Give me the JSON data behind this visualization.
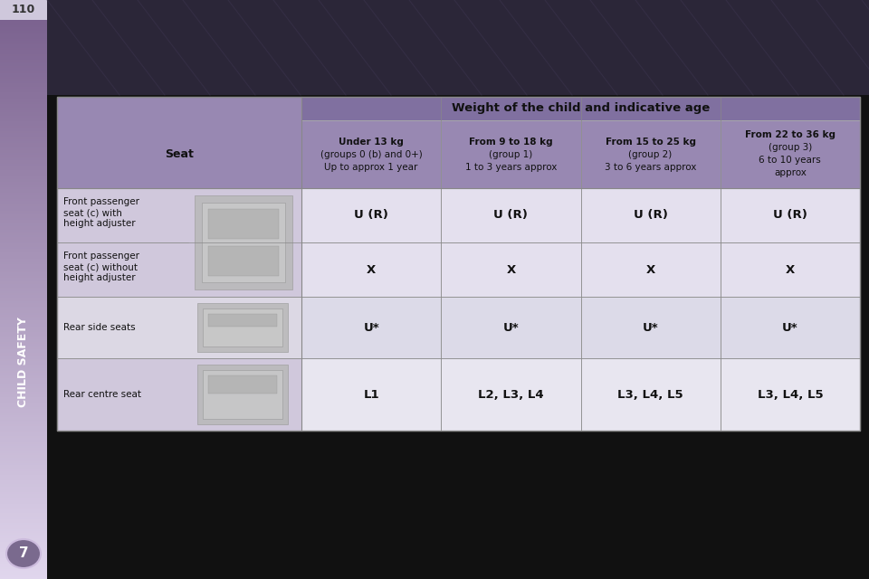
{
  "page_number": "110",
  "chapter_label": "CHILD SAFETY",
  "chapter_number": "7",
  "table_header_main": "Weight of the child and indicative age",
  "col_header_seat": "Seat",
  "col_headers": [
    [
      "Under 13 kg",
      "(groups 0 (b) and 0+)",
      "Up to approx 1 year"
    ],
    [
      "From 9 to 18 kg",
      "(group 1)",
      "1 to 3 years approx"
    ],
    [
      "From 15 to 25 kg",
      "(group 2)",
      "3 to 6 years approx"
    ],
    [
      "From 22 to 36 kg",
      "(group 3)",
      "6 to 10 years",
      "approx"
    ]
  ],
  "row_label_lines": [
    [
      "Front passenger",
      "seat (c) with",
      "height adjuster"
    ],
    [
      "Front passenger",
      "seat (c) without",
      "height adjuster"
    ],
    [
      "Rear side seats"
    ],
    [
      "Rear centre seat"
    ]
  ],
  "cell_values": [
    [
      "U (R)",
      "U (R)",
      "U (R)",
      "U (R)"
    ],
    [
      "X",
      "X",
      "X",
      "X"
    ],
    [
      "U*",
      "U*",
      "U*",
      "U*"
    ],
    [
      "L1",
      "L2, L3, L4",
      "L3, L4, L5",
      "L3, L4, L5"
    ]
  ],
  "bold_in_labels": [
    "(c)",
    "(c)",
    "",
    ""
  ],
  "bg_dark": "#111111",
  "sidebar_top": "#7a6090",
  "sidebar_bottom": "#e0d8ec",
  "page_num_bg": "#cfc8dc",
  "chapter_num_bg": "#7a6a8e",
  "decorative_top_bg": "#2b2638",
  "table_outer_bg": "#c8c0d8",
  "table_header_bg": "#8070a0",
  "table_subheader_bg": "#9888b2",
  "row0_seat_bg": "#d0c8dc",
  "row1_seat_bg": "#d0c8dc",
  "row2_seat_bg": "#dcd8e4",
  "row3_seat_bg": "#d0c8dc",
  "row0_cell_bg": "#e4e0ee",
  "row1_cell_bg": "#e4e0ee",
  "row2_cell_bg": "#dcdae8",
  "row3_cell_bg": "#e8e6f0",
  "grid_line_color": "#aaaaaa",
  "text_black": "#111111",
  "text_white": "#ffffff",
  "text_gray": "#333333"
}
